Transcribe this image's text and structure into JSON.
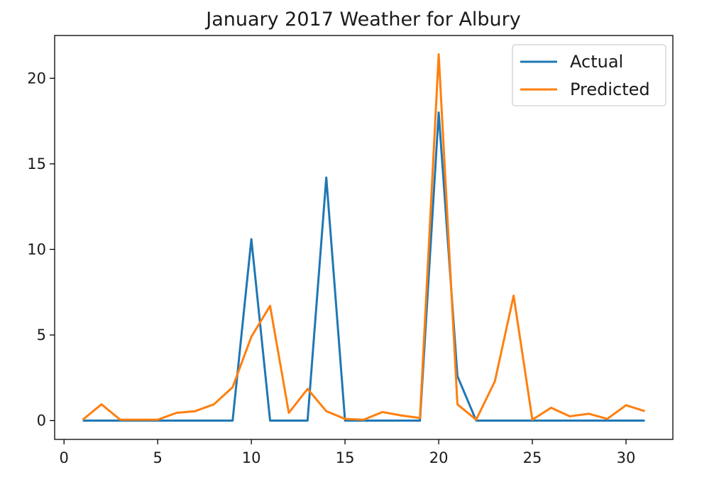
{
  "chart_data": {
    "type": "line",
    "title": "January 2017 Weather for Albury",
    "xlabel": "",
    "ylabel": "",
    "xlim": [
      -0.5,
      32.5
    ],
    "ylim": [
      -1.1,
      22.5
    ],
    "xticks": [
      0,
      5,
      10,
      15,
      20,
      25,
      30
    ],
    "yticks": [
      0,
      5,
      10,
      15,
      20
    ],
    "grid": false,
    "legend_position": "top-right",
    "x": [
      1,
      2,
      3,
      4,
      5,
      6,
      7,
      8,
      9,
      10,
      11,
      12,
      13,
      14,
      15,
      16,
      17,
      18,
      19,
      20,
      21,
      22,
      23,
      24,
      25,
      26,
      27,
      28,
      29,
      30,
      31
    ],
    "series": [
      {
        "name": "Actual",
        "color": "#1f77b4",
        "values": [
          0,
          0,
          0,
          0,
          0,
          0,
          0,
          0,
          0,
          10.6,
          0,
          0,
          0,
          14.2,
          0,
          0,
          0,
          0,
          0,
          18.0,
          2.6,
          0,
          0,
          0,
          0,
          0,
          0,
          0,
          0,
          0,
          0
        ]
      },
      {
        "name": "Predicted",
        "color": "#ff7f0e",
        "values": [
          0.05,
          0.95,
          0.05,
          0.05,
          0.05,
          0.45,
          0.55,
          0.95,
          1.95,
          4.9,
          6.7,
          0.45,
          1.85,
          0.55,
          0.1,
          0.05,
          0.5,
          0.3,
          0.15,
          21.4,
          0.95,
          0.05,
          2.3,
          7.3,
          0.05,
          0.75,
          0.25,
          0.4,
          0.1,
          0.9,
          0.55
        ]
      }
    ]
  }
}
